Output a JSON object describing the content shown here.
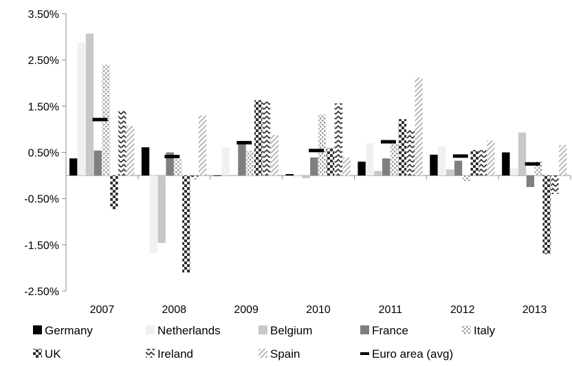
{
  "chart_data": {
    "type": "bar",
    "title": "",
    "xlabel": "",
    "ylabel": "",
    "categories": [
      "2007",
      "2008",
      "2009",
      "2010",
      "2011",
      "2012",
      "2013"
    ],
    "ylim": [
      -0.025,
      0.035
    ],
    "y_ticks": [
      0.035,
      0.025,
      0.015,
      0.005,
      -0.005,
      -0.015,
      -0.025
    ],
    "y_tick_labels": [
      "3.50%",
      "2.50%",
      "1.50%",
      "0.50%",
      "-0.50%",
      "-1.50%",
      "-2.50%"
    ],
    "grid": false,
    "legend_position": "bottom",
    "series": [
      {
        "name": "Germany",
        "color": "#000000",
        "pattern": "solid-black",
        "values": [
          0.0037,
          0.0061,
          -0.0001,
          0.0003,
          0.003,
          0.0045,
          0.005
        ]
      },
      {
        "name": "Netherlands",
        "color": "#f0f0f0",
        "pattern": "solid-light",
        "values": [
          0.0287,
          -0.0168,
          0.0061,
          -0.0004,
          0.007,
          0.0063,
          0.0016
        ]
      },
      {
        "name": "Belgium",
        "color": "#c8c8c8",
        "pattern": "solid-silver",
        "values": [
          0.0307,
          -0.0146,
          -0.0001,
          -0.0006,
          0.001,
          0.0013,
          0.0093
        ]
      },
      {
        "name": "France",
        "color": "#7f7f7f",
        "pattern": "solid-gray",
        "values": [
          0.0054,
          0.005,
          0.007,
          0.0039,
          0.0037,
          0.0032,
          -0.0025
        ]
      },
      {
        "name": "Italy",
        "color": "#a6a6a6",
        "pattern": "dots",
        "values": [
          0.024,
          0.0035,
          0.0053,
          0.0132,
          0.007,
          -0.0012,
          0.003
        ]
      },
      {
        "name": "UK",
        "color": "#3a3a3a",
        "pattern": "checker",
        "values": [
          -0.0073,
          -0.021,
          0.0163,
          0.0059,
          0.0122,
          0.0055,
          -0.017
        ]
      },
      {
        "name": "Ireland",
        "color": "#404040",
        "pattern": "zigzag",
        "values": [
          0.014,
          -0.0008,
          0.016,
          0.0156,
          0.01,
          0.0055,
          -0.004
        ]
      },
      {
        "name": "Spain",
        "color": "#bdbdbd",
        "pattern": "diagonal",
        "values": [
          0.0107,
          0.013,
          0.0088,
          0.0039,
          0.0212,
          0.0076,
          0.0066
        ]
      }
    ],
    "markers": [
      {
        "name": "Euro area (avg)",
        "color": "#000000",
        "values": [
          0.0121,
          0.0041,
          0.0071,
          0.0054,
          0.0073,
          0.0042,
          0.0025
        ]
      }
    ]
  }
}
